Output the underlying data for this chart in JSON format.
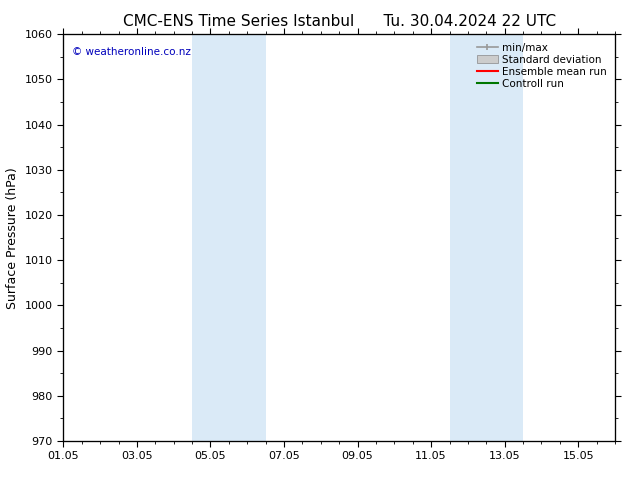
{
  "title_left": "CMC-ENS Time Series Istanbul",
  "title_right": "Tu. 30.04.2024 22 UTC",
  "ylabel": "Surface Pressure (hPa)",
  "ylim": [
    970,
    1060
  ],
  "yticks": [
    970,
    980,
    990,
    1000,
    1010,
    1020,
    1030,
    1040,
    1050,
    1060
  ],
  "xlim": [
    0,
    15
  ],
  "xtick_labels": [
    "01.05",
    "03.05",
    "05.05",
    "07.05",
    "09.05",
    "11.05",
    "13.05",
    "15.05"
  ],
  "xtick_positions": [
    0,
    2,
    4,
    6,
    8,
    10,
    12,
    14
  ],
  "shaded_bands": [
    {
      "x_start": 3.5,
      "x_end": 5.5,
      "color": "#daeaf7"
    },
    {
      "x_start": 10.5,
      "x_end": 12.5,
      "color": "#daeaf7"
    }
  ],
  "watermark": "© weatheronline.co.nz",
  "watermark_color": "#0000bb",
  "legend_items": [
    {
      "label": "min/max",
      "type": "errorbar",
      "color": "#999999"
    },
    {
      "label": "Standard deviation",
      "type": "patch",
      "color": "#cccccc"
    },
    {
      "label": "Ensemble mean run",
      "type": "line",
      "color": "#ff0000"
    },
    {
      "label": "Controll run",
      "type": "line",
      "color": "#007700"
    }
  ],
  "bg_color": "#ffffff",
  "plot_bg_color": "#ffffff",
  "spine_color": "#aaaaaa",
  "tick_color": "#000000",
  "title_fontsize": 11,
  "label_fontsize": 9,
  "tick_fontsize": 8,
  "legend_fontsize": 7.5
}
